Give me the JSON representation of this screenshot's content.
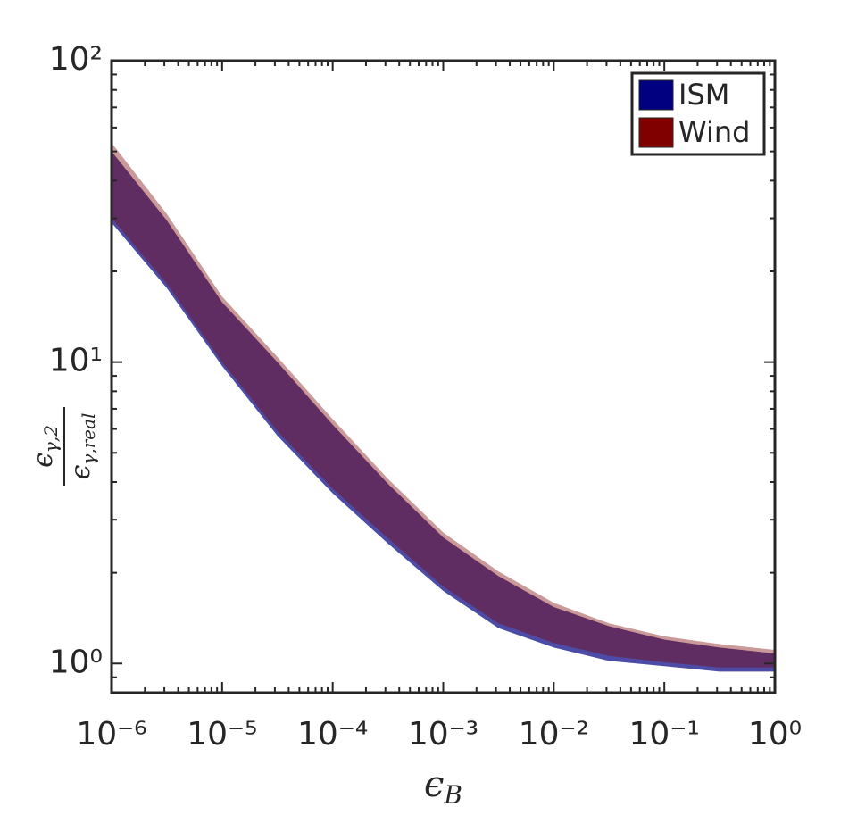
{
  "chart_data": {
    "type": "band",
    "x": [
      1e-06,
      3.16e-06,
      1e-05,
      3.16e-05,
      0.0001,
      0.000316,
      0.001,
      0.00316,
      0.01,
      0.0316,
      0.1,
      0.316,
      1
    ],
    "series": [
      {
        "name": "ISM",
        "color": "#000080",
        "low": [
          29,
          17.6,
          9.7,
          5.7,
          3.67,
          2.5,
          1.74,
          1.31,
          1.13,
          1.02,
          0.98,
          0.94,
          0.94
        ],
        "high": [
          50,
          29.5,
          15.8,
          10,
          6.2,
          3.95,
          2.62,
          1.95,
          1.54,
          1.33,
          1.2,
          1.13,
          1.08
        ]
      },
      {
        "name": "Wind",
        "color": "#800000",
        "low": [
          30,
          18.2,
          10,
          5.9,
          3.8,
          2.6,
          1.8,
          1.36,
          1.17,
          1.06,
          1.01,
          0.97,
          0.97
        ],
        "high": [
          53.4,
          31,
          16.5,
          10.4,
          6.47,
          4.1,
          2.72,
          2.02,
          1.59,
          1.36,
          1.23,
          1.16,
          1.11
        ]
      }
    ],
    "xlim": [
      1e-06,
      1
    ],
    "ylim": [
      0.8,
      100
    ],
    "xscale": "log",
    "yscale": "log",
    "xticks": [
      {
        "value": 1e-06,
        "label": "10⁻⁶"
      },
      {
        "value": 1e-05,
        "label": "10⁻⁵"
      },
      {
        "value": 0.0001,
        "label": "10⁻⁴"
      },
      {
        "value": 0.001,
        "label": "10⁻³"
      },
      {
        "value": 0.01,
        "label": "10⁻²"
      },
      {
        "value": 0.1,
        "label": "10⁻¹"
      },
      {
        "value": 1,
        "label": "10⁰"
      }
    ],
    "yticks": [
      {
        "value": 1,
        "label": "10⁰"
      },
      {
        "value": 10,
        "label": "10¹"
      },
      {
        "value": 100,
        "label": "10²"
      }
    ],
    "xlabel": [
      "ϵ",
      "B"
    ],
    "ylabel": {
      "numerator": [
        "ϵ",
        "γ,2"
      ],
      "denominator": [
        "ϵ",
        "γ,real"
      ]
    },
    "legend": "upper right"
  }
}
